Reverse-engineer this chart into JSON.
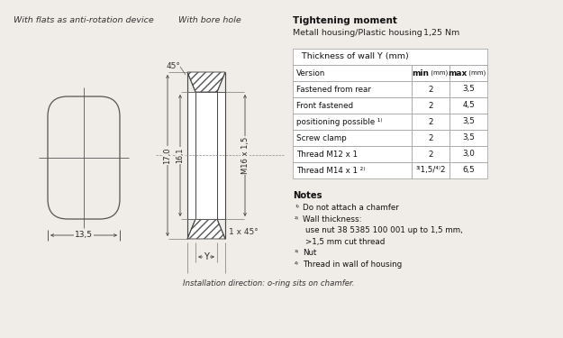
{
  "bg_color": "#f0ede8",
  "title_text": "With flats as anti-rotation device",
  "title2_text": "With bore hole",
  "tightening_title": "Tightening moment",
  "tightening_subtitle": "Metall housing/Plastic housing",
  "tightening_value": "1,25 Nm",
  "table_header": "Thickness of wall Y (mm)",
  "col_headers": [
    "Version",
    "min (mm)",
    "max (mm)"
  ],
  "col_header_bold": [
    false,
    true,
    true
  ],
  "col_header_small": [
    false,
    true,
    true
  ],
  "table_rows": [
    [
      "Fastened from rear",
      "2",
      "3,5"
    ],
    [
      "Front fastened",
      "2",
      "4,5"
    ],
    [
      "positioning possible ¹⁾",
      "2",
      "3,5"
    ],
    [
      "Screw clamp",
      "2",
      "3,5"
    ],
    [
      "Thread M12 x 1",
      "2",
      "3,0"
    ],
    [
      "Thread M14 x 1 ²⁾",
      "³⁾1,5/⁴⁾2",
      "6,5"
    ]
  ],
  "notes_title": "Notes",
  "notes": [
    [
      "¹⁾",
      "Do not attach a chamfer"
    ],
    [
      "²⁾",
      "Wall thickness:"
    ],
    [
      "",
      "use nut 38 5385 100 001 up to 1,5 mm,"
    ],
    [
      "",
      ">1,5 mm cut thread"
    ],
    [
      "³⁾",
      "Nut"
    ],
    [
      "⁴⁾",
      "Thread in wall of housing"
    ]
  ],
  "install_note": "Installation direction: o-ring sits on chamfer.",
  "dim_135": "13,5",
  "dim_170": "17,0",
  "dim_161": "16,1",
  "dim_thread": "M16 x 1,5",
  "dim_45top": "45°",
  "dim_45bot": "1 x 45°",
  "dim_Y": "Y"
}
